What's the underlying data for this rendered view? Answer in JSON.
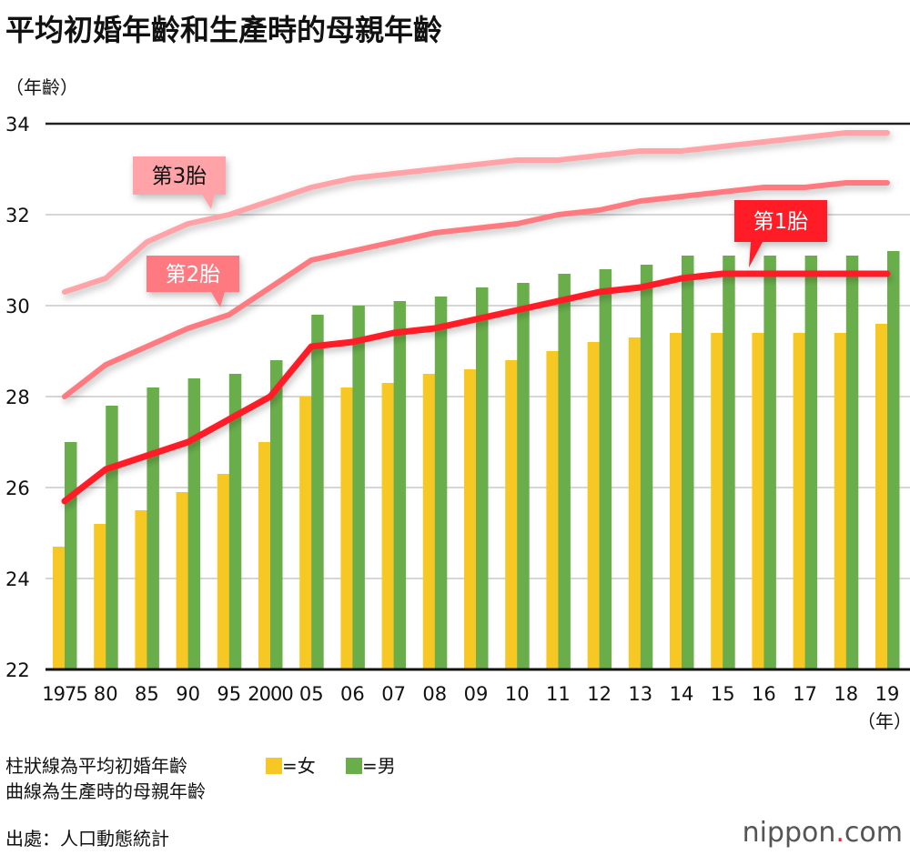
{
  "title": "平均初婚年齡和生產時的母親年齡",
  "chart_data": {
    "type": "bar+line",
    "ylabel": "（年齡）",
    "xlabel": "（年）",
    "ylim": [
      22,
      34
    ],
    "yticks": [
      22,
      24,
      26,
      28,
      30,
      32,
      34
    ],
    "grid": true,
    "categories": [
      "1975",
      "80",
      "85",
      "90",
      "95",
      "2000",
      "05",
      "06",
      "07",
      "08",
      "09",
      "10",
      "11",
      "12",
      "13",
      "14",
      "15",
      "16",
      "17",
      "18",
      "19"
    ],
    "bar_series": [
      {
        "name": "女",
        "color": "#f7c823",
        "values": [
          24.7,
          25.2,
          25.5,
          25.9,
          26.3,
          27.0,
          28.0,
          28.2,
          28.3,
          28.5,
          28.6,
          28.8,
          29.0,
          29.2,
          29.3,
          29.4,
          29.4,
          29.4,
          29.4,
          29.4,
          29.6
        ]
      },
      {
        "name": "男",
        "color": "#6aae4c",
        "values": [
          27.0,
          27.8,
          28.2,
          28.4,
          28.5,
          28.8,
          29.8,
          30.0,
          30.1,
          30.2,
          30.4,
          30.5,
          30.7,
          30.8,
          30.9,
          31.1,
          31.1,
          31.1,
          31.1,
          31.1,
          31.2
        ]
      }
    ],
    "line_series": [
      {
        "name": "第1胎",
        "color": "#ff1e28",
        "values": [
          25.7,
          26.4,
          26.7,
          27.0,
          27.5,
          28.0,
          29.1,
          29.2,
          29.4,
          29.5,
          29.7,
          29.9,
          30.1,
          30.3,
          30.4,
          30.6,
          30.7,
          30.7,
          30.7,
          30.7,
          30.7
        ]
      },
      {
        "name": "第2胎",
        "color": "#ff7a80",
        "values": [
          28.0,
          28.7,
          29.1,
          29.5,
          29.8,
          30.4,
          31.0,
          31.2,
          31.4,
          31.6,
          31.7,
          31.8,
          32.0,
          32.1,
          32.3,
          32.4,
          32.5,
          32.6,
          32.6,
          32.7,
          32.7
        ]
      },
      {
        "name": "第3胎",
        "color": "#ffa3a8",
        "values": [
          30.3,
          30.6,
          31.4,
          31.8,
          32.0,
          32.3,
          32.6,
          32.8,
          32.9,
          33.0,
          33.1,
          33.2,
          33.2,
          33.3,
          33.4,
          33.4,
          33.5,
          33.6,
          33.7,
          33.8,
          33.8
        ]
      }
    ]
  },
  "legend": {
    "note1": "柱狀線為平均初婚年齡",
    "note2": "曲線為生產時的母親年齡",
    "female": "=女",
    "male": "=男"
  },
  "source": "出處：人口動態統計",
  "logo": {
    "text": "nippon",
    "dot": ".",
    "suffix": "com"
  }
}
